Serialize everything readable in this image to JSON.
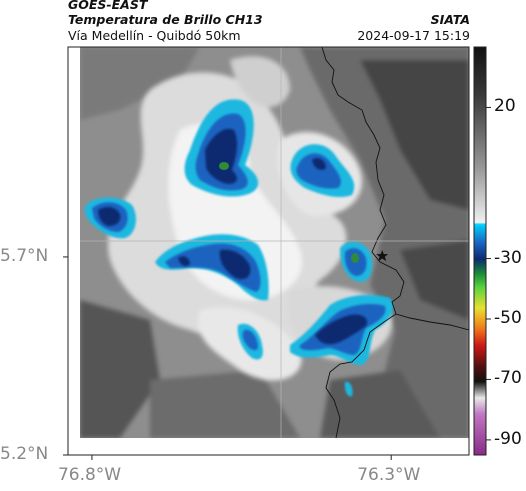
{
  "header": {
    "source": "GOES-EAST",
    "product": "Temperatura de Brillo CH13",
    "agency": "SIATA",
    "region": "Vía Medellín - Quibdó 50km",
    "timestamp": "2024-09-17 15:19"
  },
  "axes": {
    "x_ticks": [
      {
        "value": -76.8,
        "label": "76.8°W"
      },
      {
        "value": -76.3,
        "label": "76.3°W"
      }
    ],
    "y_ticks": [
      {
        "value": 5.7,
        "label": "5.7°N"
      },
      {
        "value": 5.2,
        "label": "5.2°N"
      }
    ],
    "x_range": [
      -76.84,
      -76.17
    ],
    "y_range": [
      5.2,
      6.23
    ]
  },
  "colorbar": {
    "ticks": [
      "20",
      "-30",
      "-50",
      "-70",
      "-90"
    ],
    "range": [
      -95,
      40
    ]
  },
  "map": {
    "marker": "star-icon",
    "marker_lon": -76.315,
    "marker_lat": 5.702,
    "colors": {
      "warm_dark": "#3a3a3a",
      "warm_mid": "#9a9a9a",
      "cold_cloud_light": "#f2f2f2",
      "cyan": "#1cb8e0",
      "blue": "#1a64c0",
      "navy": "#0c2a70",
      "green_core": "#2f8a3a"
    }
  }
}
